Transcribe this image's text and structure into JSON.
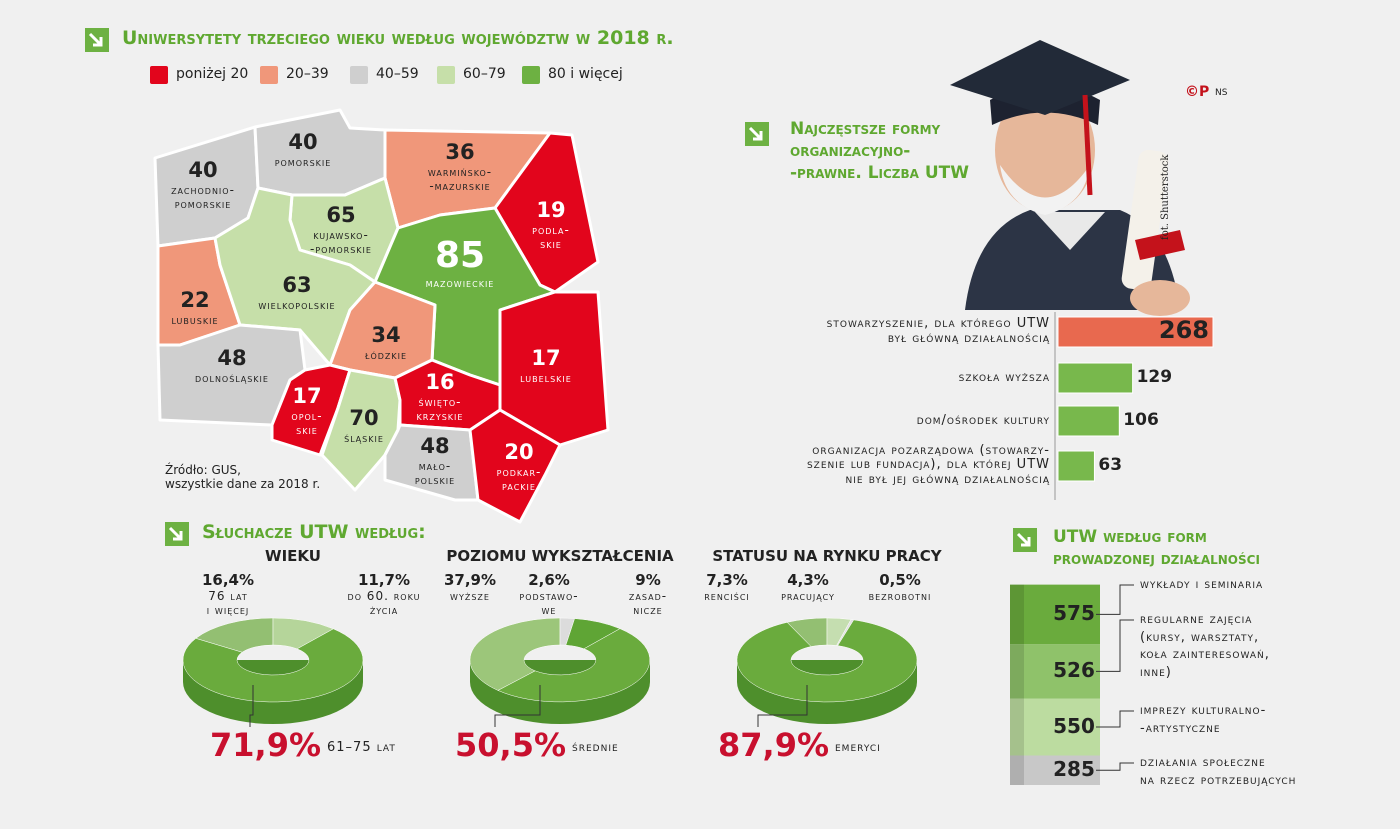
{
  "logo": "©P",
  "author": "NS",
  "photo_credit": "fot. Shutterstock",
  "chart_data": [
    {
      "type": "choropleth",
      "title": "Uniwersytety trzeciego wieku według województw w 2018 r.",
      "legend": [
        {
          "label": "poniżej 20",
          "color": "#e2051c"
        },
        {
          "label": "20–39",
          "color": "#f0977a"
        },
        {
          "label": "40–59",
          "color": "#cfcfcf"
        },
        {
          "label": "60–79",
          "color": "#c6dfa9"
        },
        {
          "label": "80 i więcej",
          "color": "#6db142"
        }
      ],
      "regions": [
        {
          "name": "zachodnio-\npomorskie",
          "value": 40,
          "color": "#cfcfcf"
        },
        {
          "name": "pomorskie",
          "value": 40,
          "color": "#cfcfcf"
        },
        {
          "name": "warmińsko-\n-mazurskie",
          "value": 36,
          "color": "#f0977a"
        },
        {
          "name": "podla-\nskie",
          "value": 19,
          "color": "#e2051c"
        },
        {
          "name": "kujawsko-\n-pomorskie",
          "value": 65,
          "color": "#c6dfa9"
        },
        {
          "name": "mazowieckie",
          "value": 85,
          "color": "#6db142"
        },
        {
          "name": "lubuskie",
          "value": 22,
          "color": "#f0977a"
        },
        {
          "name": "wielkopolskie",
          "value": 63,
          "color": "#c6dfa9"
        },
        {
          "name": "łódzkie",
          "value": 34,
          "color": "#f0977a"
        },
        {
          "name": "dolnośląskie",
          "value": 48,
          "color": "#cfcfcf"
        },
        {
          "name": "opol-\nskie",
          "value": 17,
          "color": "#e2051c"
        },
        {
          "name": "śląskie",
          "value": 70,
          "color": "#c6dfa9"
        },
        {
          "name": "święto-\nkrzyskie",
          "value": 16,
          "color": "#e2051c"
        },
        {
          "name": "lubelskie",
          "value": 17,
          "color": "#e2051c"
        },
        {
          "name": "mało-\npolskie",
          "value": 48,
          "color": "#cfcfcf"
        },
        {
          "name": "podkar-\npackie",
          "value": 20,
          "color": "#e2051c"
        }
      ],
      "source": "Źródło: GUS,\nwszystkie dane za 2018 r."
    },
    {
      "type": "bar",
      "orientation": "horizontal",
      "title": "Najczęstsze formy\norganizacyjno-\n-prawne. Liczba UTW",
      "categories": [
        "stowarzyszenie, dla którego UTW\nbył główną działalnością",
        "szkoła wyższa",
        "dom/ośrodek kultury",
        "organizacja pozarządowa (stowarzy-\nszenie lub fundacja), dla której UTW\nnie był jej główną działalnością"
      ],
      "values": [
        268,
        129,
        106,
        63
      ],
      "colors": [
        "#e8694f",
        "#78b84c",
        "#78b84c",
        "#78b84c"
      ]
    },
    {
      "type": "donut",
      "title": "Słuchacze UTW według:",
      "panels": [
        {
          "title": "wieku",
          "categories": [
            "76 lat\ni więcej",
            "do 60. roku\nżycia",
            "61–75 lat"
          ],
          "values": [
            16.4,
            11.7,
            71.9
          ],
          "value_labels": [
            "16,4%",
            "11,7%",
            "71,9%"
          ],
          "colors": [
            "#93bf72",
            "#b5d59a",
            "#6aab3d"
          ]
        },
        {
          "title": "poziomu wykształcenia",
          "categories": [
            "wyższe",
            "podstawo-\nwe",
            "zasad-\nnicze",
            "średnie"
          ],
          "values": [
            37.9,
            2.6,
            9,
            50.5
          ],
          "value_labels": [
            "37,9%",
            "2,6%",
            "9%",
            "50,5%"
          ],
          "colors": [
            "#9cc67a",
            "#dcdcdc",
            "#5fa535",
            "#6aab3d"
          ]
        },
        {
          "title": "statusu na rynku pracy",
          "categories": [
            "renciści",
            "pracujący",
            "bezrobotni",
            "emeryci"
          ],
          "values": [
            7.3,
            4.3,
            0.5,
            87.9
          ],
          "value_labels": [
            "7,3%",
            "4,3%",
            "0,5%",
            "87,9%"
          ],
          "colors": [
            "#93bf72",
            "#c5deb0",
            "#e2e2e2",
            "#6aab3d"
          ]
        }
      ]
    },
    {
      "type": "stacked-column",
      "title": "UTW według form\nprowadzonej działalności",
      "categories": [
        "wykłady i seminaria",
        "regularne zajęcia\n(kursy, warsztaty,\nkoła zainteresowań,\ninne)",
        "imprezy kulturalno-\n-artystyczne",
        "działania społeczne\nna rzecz potrzebujących"
      ],
      "values": [
        575,
        526,
        550,
        285
      ],
      "colors": [
        "#6aab3d",
        "#8fc26a",
        "#bcdca0",
        "#c8c8c8"
      ]
    }
  ]
}
